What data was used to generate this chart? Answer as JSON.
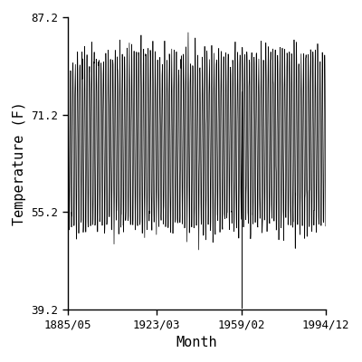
{
  "title": "",
  "xlabel": "Month",
  "ylabel": "Temperature (F)",
  "x_tick_labels": [
    "1885/05",
    "1923/03",
    "1959/02",
    "1994/12"
  ],
  "x_tick_years": [
    1885,
    1923,
    1959,
    1994
  ],
  "x_tick_months": [
    5,
    3,
    2,
    12
  ],
  "y_ticks": [
    39.2,
    55.2,
    71.2,
    87.2
  ],
  "ylim": [
    39.2,
    87.2
  ],
  "start_year": 1885,
  "start_month": 5,
  "end_year": 1994,
  "end_month": 12,
  "line_color": "#000000",
  "line_width": 0.5,
  "background_color": "#ffffff",
  "seasonal_amplitude": 14.0,
  "mean_temp": 67.0,
  "noise_scale": 1.5,
  "figsize": [
    4.0,
    4.0
  ],
  "dpi": 100
}
